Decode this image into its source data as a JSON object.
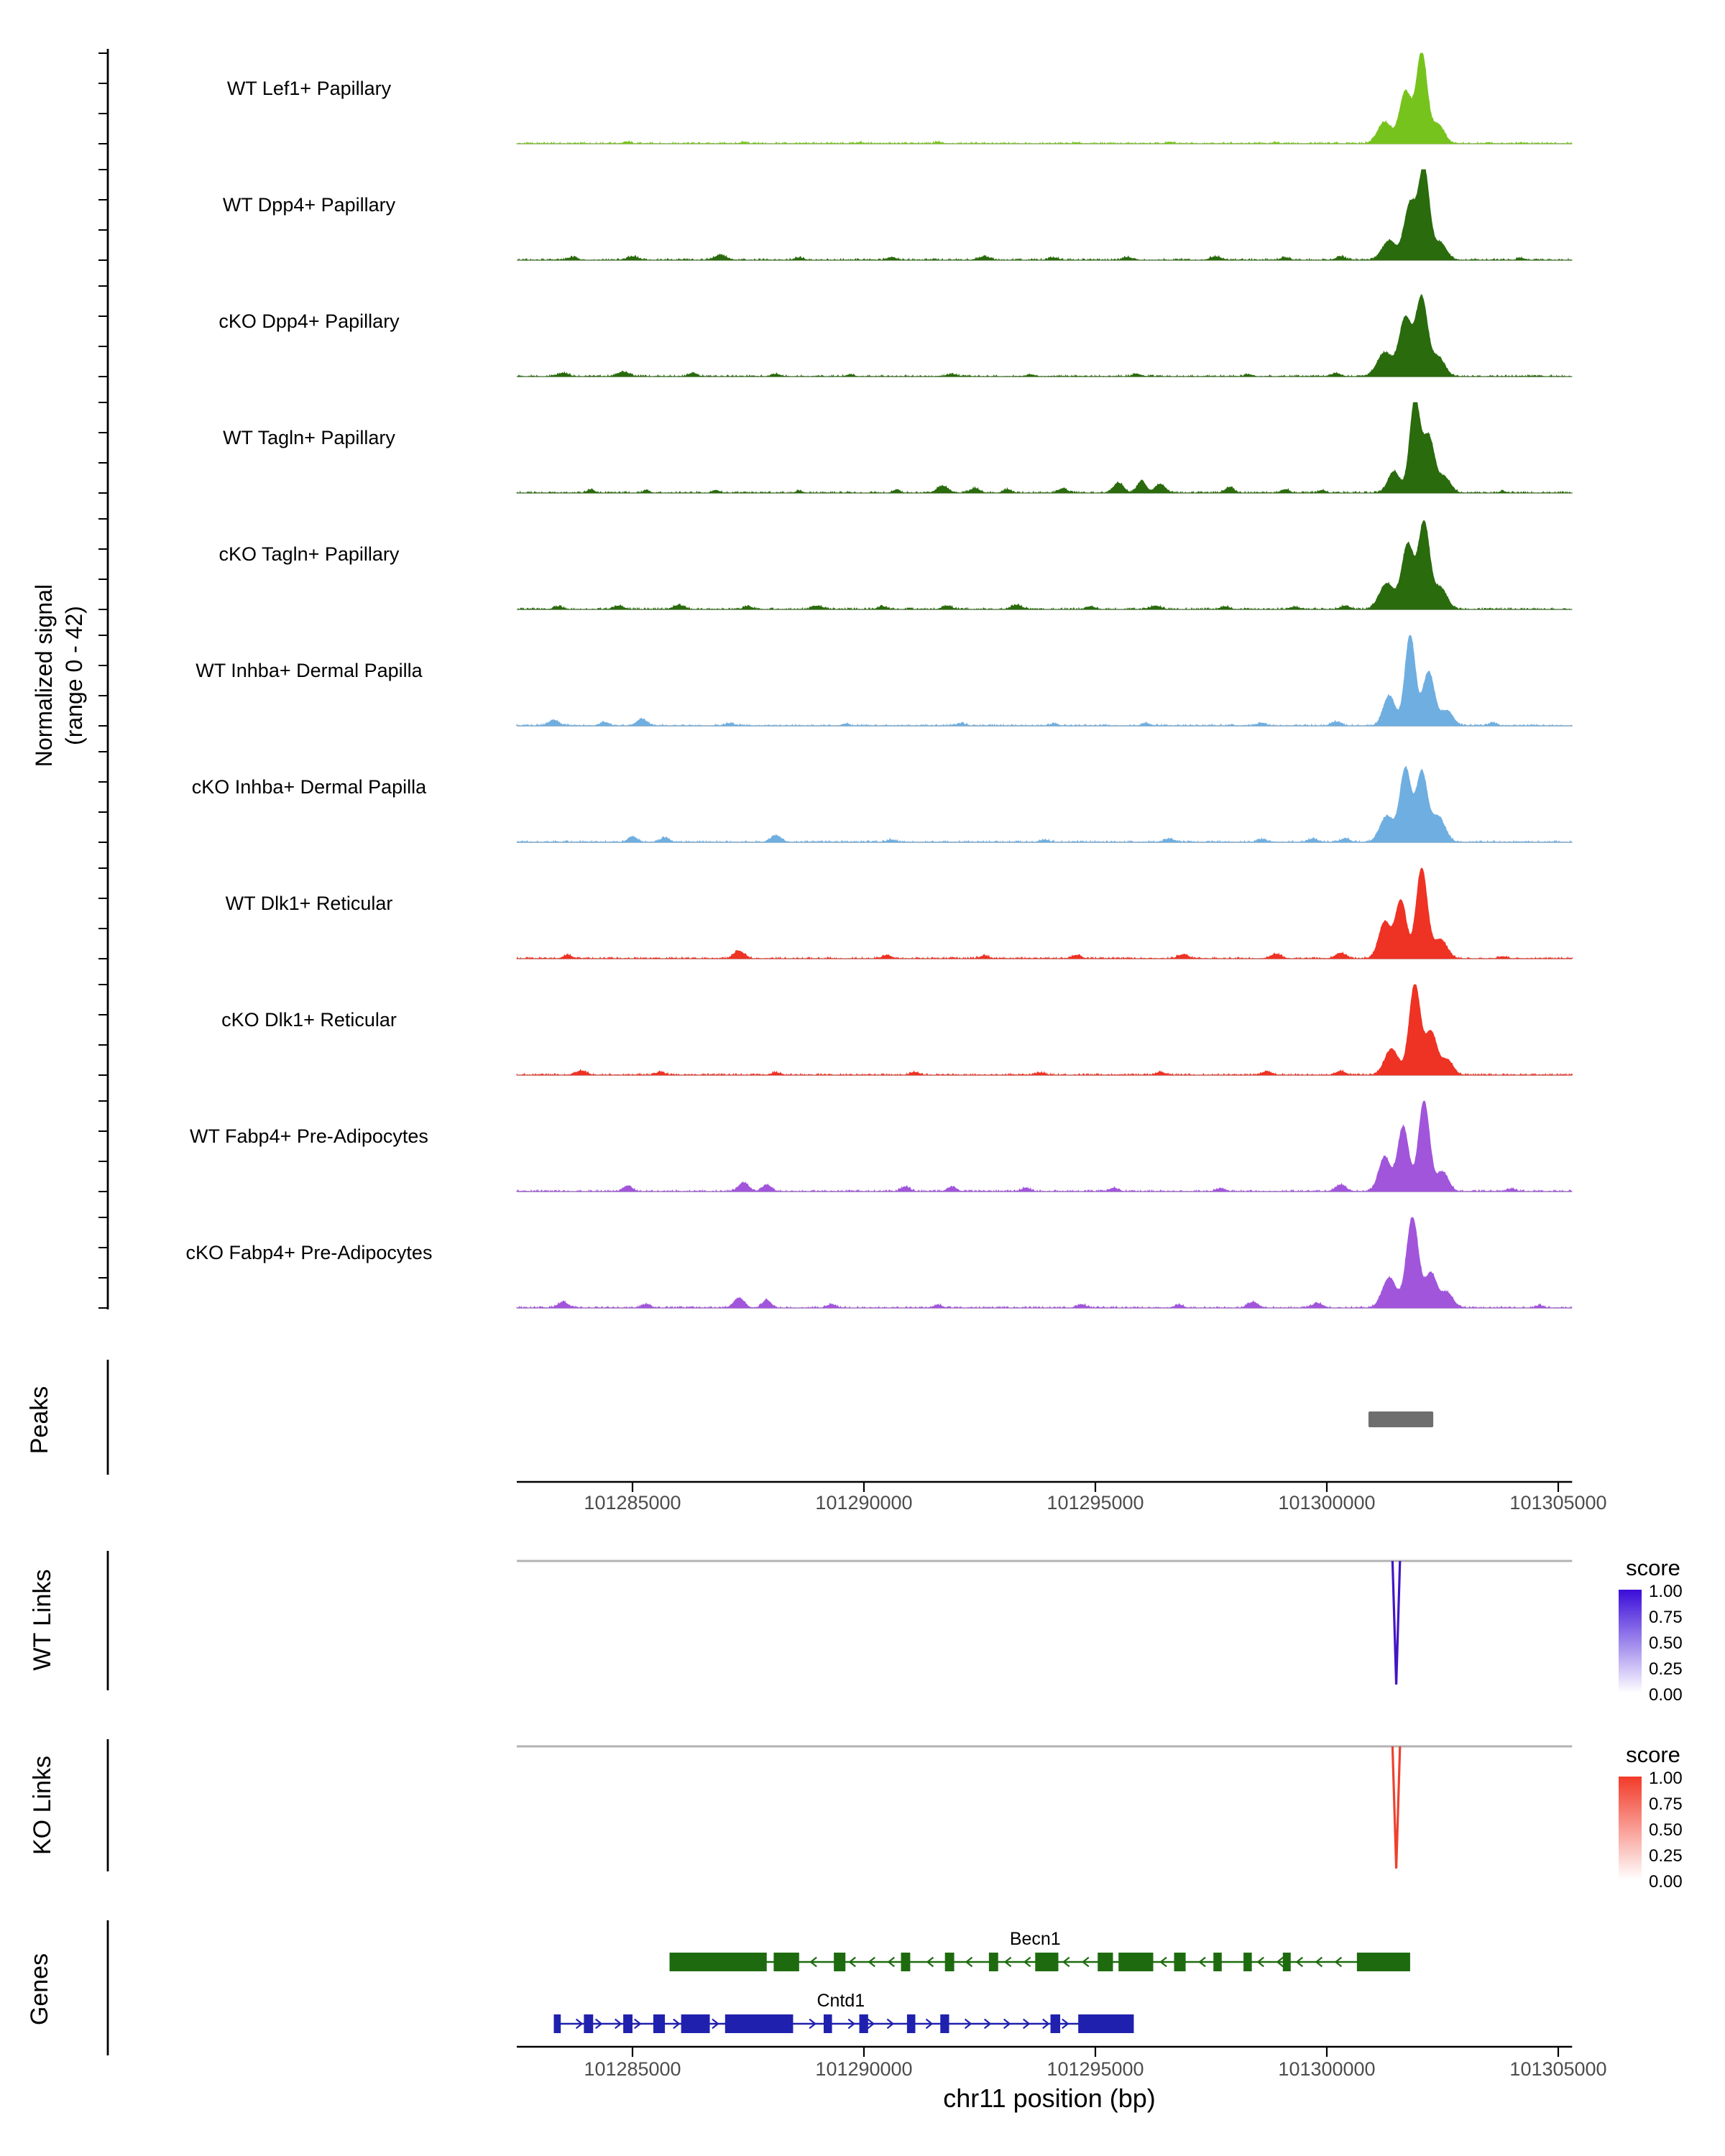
{
  "figure": {
    "y_axis_label": [
      "Normalized signal",
      "(range 0 - 42)"
    ],
    "x_axis_label": "chr11 position (bp)",
    "section_labels": {
      "peaks": "Peaks",
      "wt_links": "WT Links",
      "ko_links": "KO Links",
      "genes": "Genes"
    },
    "score_legend_title": "score"
  },
  "chart_data": {
    "type": "area",
    "title": "",
    "xlabel": "chr11 position (bp)",
    "ylabel": "Normalized signal (range 0 - 42)",
    "chrom": "chr11",
    "x_range_bp": [
      101282500,
      101305300
    ],
    "x_ticks": [
      101285000,
      101290000,
      101295000,
      101300000,
      101305000
    ],
    "x_tick_labels": [
      "101285000",
      "101290000",
      "101295000",
      "101300000",
      "101305000"
    ],
    "signal_range": [
      0,
      42
    ],
    "tracks": [
      {
        "label": "WT Lef1+ Papillary",
        "color": "#77C31D",
        "peaks": [
          [
            101301250,
            10,
            350
          ],
          [
            101301700,
            24,
            300
          ],
          [
            101302050,
            42,
            270
          ],
          [
            101302400,
            9,
            320
          ],
          [
            101284900,
            0.8,
            160
          ],
          [
            101287400,
            0.6,
            140
          ],
          [
            101289900,
            0.5,
            140
          ],
          [
            101291600,
            0.7,
            160
          ],
          [
            101294600,
            0.5,
            140
          ],
          [
            101296600,
            0.8,
            160
          ],
          [
            101298900,
            0.6,
            140
          ],
          [
            101303500,
            0.5,
            140
          ]
        ]
      },
      {
        "label": "WT Dpp4+ Papillary",
        "color": "#2A6B0D",
        "peaks": [
          [
            101301350,
            9,
            350
          ],
          [
            101301800,
            26,
            300
          ],
          [
            101302100,
            42,
            270
          ],
          [
            101302450,
            8,
            320
          ],
          [
            101283700,
            1.3,
            220
          ],
          [
            101285000,
            1.6,
            260
          ],
          [
            101286900,
            2.2,
            300
          ],
          [
            101288600,
            1.1,
            220
          ],
          [
            101290600,
            1.3,
            220
          ],
          [
            101292600,
            1.6,
            260
          ],
          [
            101294100,
            1.1,
            220
          ],
          [
            101295700,
            1.3,
            220
          ],
          [
            101297600,
            1.6,
            260
          ],
          [
            101299100,
            1.1,
            220
          ],
          [
            101300300,
            1.5,
            240
          ],
          [
            101304200,
            0.8,
            200
          ]
        ]
      },
      {
        "label": "cKO Dpp4+ Papillary",
        "color": "#2A6B0D",
        "peaks": [
          [
            101301250,
            11,
            380
          ],
          [
            101301700,
            27,
            320
          ],
          [
            101302050,
            36,
            290
          ],
          [
            101302400,
            9,
            340
          ],
          [
            101283500,
            1.6,
            260
          ],
          [
            101284800,
            2.1,
            300
          ],
          [
            101286300,
            1.3,
            220
          ],
          [
            101288100,
            1.1,
            220
          ],
          [
            101289700,
            0.9,
            180
          ],
          [
            101291900,
            1.1,
            220
          ],
          [
            101293600,
            0.9,
            180
          ],
          [
            101295900,
            1.1,
            220
          ],
          [
            101298300,
            0.9,
            180
          ],
          [
            101300200,
            1.4,
            240
          ]
        ]
      },
      {
        "label": "WT Tagln+ Papillary",
        "color": "#2A6B0D",
        "peaks": [
          [
            101301450,
            10,
            300
          ],
          [
            101301900,
            42,
            260
          ],
          [
            101302200,
            26,
            300
          ],
          [
            101302550,
            7,
            300
          ],
          [
            101284100,
            1.6,
            180
          ],
          [
            101285300,
            1.1,
            160
          ],
          [
            101286800,
            1.3,
            170
          ],
          [
            101288600,
            1.0,
            160
          ],
          [
            101290700,
            1.4,
            180
          ],
          [
            101291700,
            3.2,
            280
          ],
          [
            101292400,
            2.1,
            240
          ],
          [
            101293100,
            1.6,
            210
          ],
          [
            101294300,
            2.1,
            220
          ],
          [
            101295500,
            4.6,
            260
          ],
          [
            101296000,
            5.6,
            220
          ],
          [
            101296400,
            4.1,
            260
          ],
          [
            101297900,
            2.6,
            220
          ],
          [
            101299100,
            1.6,
            210
          ],
          [
            101299900,
            1.3,
            180
          ],
          [
            101303800,
            0.8,
            160
          ]
        ]
      },
      {
        "label": "cKO Tagln+ Papillary",
        "color": "#2A6B0D",
        "peaks": [
          [
            101301300,
            12,
            380
          ],
          [
            101301750,
            30,
            300
          ],
          [
            101302100,
            40,
            280
          ],
          [
            101302450,
            10,
            340
          ],
          [
            101283400,
            1.3,
            220
          ],
          [
            101284700,
            1.6,
            260
          ],
          [
            101286000,
            1.9,
            260
          ],
          [
            101287500,
            1.3,
            220
          ],
          [
            101289000,
            1.6,
            260
          ],
          [
            101290400,
            1.3,
            220
          ],
          [
            101291800,
            1.6,
            220
          ],
          [
            101293300,
            1.9,
            260
          ],
          [
            101294900,
            1.3,
            220
          ],
          [
            101296300,
            1.6,
            260
          ],
          [
            101297800,
            1.3,
            220
          ],
          [
            101299300,
            1.1,
            220
          ],
          [
            101300400,
            1.5,
            240
          ]
        ]
      },
      {
        "label": "WT Inhba+ Dermal Papilla",
        "color": "#6FAEE0",
        "peaks": [
          [
            101301350,
            14,
            300
          ],
          [
            101301800,
            42,
            260
          ],
          [
            101302200,
            25,
            300
          ],
          [
            101302600,
            7,
            300
          ],
          [
            101283300,
            2.6,
            260
          ],
          [
            101284400,
            1.6,
            220
          ],
          [
            101285200,
            3.1,
            260
          ],
          [
            101287100,
            1.1,
            220
          ],
          [
            101289600,
            0.9,
            180
          ],
          [
            101292100,
            1.1,
            220
          ],
          [
            101294100,
            0.9,
            180
          ],
          [
            101296100,
            1.1,
            220
          ],
          [
            101298600,
            1.3,
            220
          ],
          [
            101300200,
            1.8,
            240
          ],
          [
            101303600,
            1.2,
            200
          ]
        ]
      },
      {
        "label": "cKO Inhba+ Dermal Papilla",
        "color": "#6FAEE0",
        "peaks": [
          [
            101301300,
            12,
            350
          ],
          [
            101301700,
            34,
            280
          ],
          [
            101302050,
            32,
            280
          ],
          [
            101302400,
            12,
            350
          ],
          [
            101285000,
            2.6,
            220
          ],
          [
            101285700,
            2.1,
            220
          ],
          [
            101288100,
            3.1,
            260
          ],
          [
            101290600,
            1.1,
            220
          ],
          [
            101293900,
            1.1,
            220
          ],
          [
            101296600,
            1.6,
            220
          ],
          [
            101298600,
            1.3,
            220
          ],
          [
            101299700,
            1.6,
            220
          ],
          [
            101300400,
            1.8,
            220
          ]
        ]
      },
      {
        "label": "WT Dlk1+ Reticular",
        "color": "#EE3224",
        "peaks": [
          [
            101301250,
            17,
            300
          ],
          [
            101301600,
            27,
            280
          ],
          [
            101302050,
            42,
            280
          ],
          [
            101302450,
            9,
            340
          ],
          [
            101283600,
            1.6,
            220
          ],
          [
            101287300,
            3.6,
            260
          ],
          [
            101290500,
            1.6,
            220
          ],
          [
            101292600,
            1.3,
            220
          ],
          [
            101294600,
            1.6,
            220
          ],
          [
            101296900,
            1.9,
            260
          ],
          [
            101298900,
            2.1,
            260
          ],
          [
            101300300,
            2.6,
            260
          ],
          [
            101303800,
            1.0,
            200
          ]
        ]
      },
      {
        "label": "cKO Dlk1+ Reticular",
        "color": "#EE3224",
        "peaks": [
          [
            101301400,
            12,
            350
          ],
          [
            101301900,
            42,
            280
          ],
          [
            101302250,
            20,
            300
          ],
          [
            101302600,
            7,
            300
          ],
          [
            101283900,
            1.9,
            260
          ],
          [
            101285600,
            1.3,
            220
          ],
          [
            101288100,
            1.1,
            220
          ],
          [
            101291100,
            1.3,
            220
          ],
          [
            101293800,
            1.1,
            220
          ],
          [
            101296400,
            1.3,
            220
          ],
          [
            101298700,
            1.6,
            260
          ],
          [
            101300300,
            1.8,
            240
          ]
        ]
      },
      {
        "label": "WT Fabp4+ Pre-Adipocytes",
        "color": "#A155DB",
        "peaks": [
          [
            101301250,
            16,
            300
          ],
          [
            101301650,
            30,
            280
          ],
          [
            101302100,
            42,
            280
          ],
          [
            101302500,
            9,
            300
          ],
          [
            101284900,
            2.6,
            220
          ],
          [
            101287400,
            4.1,
            260
          ],
          [
            101287900,
            3.1,
            220
          ],
          [
            101290900,
            2.1,
            220
          ],
          [
            101291900,
            2.1,
            220
          ],
          [
            101293500,
            1.6,
            220
          ],
          [
            101295400,
            1.6,
            220
          ],
          [
            101297700,
            1.3,
            220
          ],
          [
            101300300,
            3.1,
            260
          ],
          [
            101304000,
            1.2,
            200
          ]
        ]
      },
      {
        "label": "cKO Fabp4+ Pre-Adipocytes",
        "color": "#A155DB",
        "peaks": [
          [
            101301350,
            14,
            350
          ],
          [
            101301850,
            42,
            300
          ],
          [
            101302250,
            16,
            300
          ],
          [
            101302600,
            7,
            300
          ],
          [
            101283500,
            2.6,
            260
          ],
          [
            101285300,
            1.6,
            220
          ],
          [
            101287300,
            4.6,
            260
          ],
          [
            101287900,
            3.6,
            220
          ],
          [
            101289300,
            1.6,
            220
          ],
          [
            101291600,
            1.3,
            220
          ],
          [
            101294700,
            1.6,
            220
          ],
          [
            101296800,
            1.3,
            220
          ],
          [
            101298400,
            2.6,
            260
          ],
          [
            101299800,
            2.1,
            260
          ],
          [
            101304600,
            1.1,
            200
          ]
        ]
      }
    ],
    "peaks_track": {
      "color": "#6E6E6E",
      "regions": [
        [
          101300900,
          101302300
        ]
      ]
    },
    "wt_links": {
      "label": "WT Links",
      "color": "#4315C4",
      "legend_color": "#3A0CD9",
      "legend_ticks": [
        "1.00",
        "0.75",
        "0.50",
        "0.25",
        "0.00"
      ],
      "links": [
        {
          "pos": 101301500,
          "score": 1.0
        }
      ]
    },
    "ko_links": {
      "label": "KO Links",
      "color": "#EE4130",
      "legend_color": "#F23A28",
      "legend_ticks": [
        "1.00",
        "0.75",
        "0.50",
        "0.25",
        "0.00"
      ],
      "links": [
        {
          "pos": 101301500,
          "score": 1.0
        }
      ]
    },
    "genes": [
      {
        "name": "Becn1",
        "color": "#1E6B0F",
        "strand": "-",
        "start": 101285800,
        "end": 101301800,
        "label_pos": 101293700,
        "exons": [
          [
            101285800,
            101287900
          ],
          [
            101288050,
            101288600
          ],
          [
            101289350,
            101289600
          ],
          [
            101290800,
            101291000
          ],
          [
            101291750,
            101291950
          ],
          [
            101292700,
            101292900
          ],
          [
            101293700,
            101294200
          ],
          [
            101295050,
            101295380
          ],
          [
            101295500,
            101296250
          ],
          [
            101296700,
            101296950
          ],
          [
            101297550,
            101297730
          ],
          [
            101298200,
            101298380
          ],
          [
            101299050,
            101299220
          ],
          [
            101300650,
            101301800
          ]
        ]
      },
      {
        "name": "Cntd1",
        "color": "#2020AE",
        "strand": "+",
        "start": 101283300,
        "end": 101295830,
        "label_pos": 101289500,
        "exons": [
          [
            101283300,
            101283450
          ],
          [
            101283950,
            101284150
          ],
          [
            101284800,
            101285000
          ],
          [
            101285450,
            101285700
          ],
          [
            101286050,
            101286670
          ],
          [
            101287000,
            101288470
          ],
          [
            101289130,
            101289310
          ],
          [
            101289900,
            101290090
          ],
          [
            101290930,
            101291110
          ],
          [
            101291650,
            101291840
          ],
          [
            101294030,
            101294240
          ],
          [
            101294630,
            101295830
          ]
        ]
      }
    ]
  }
}
